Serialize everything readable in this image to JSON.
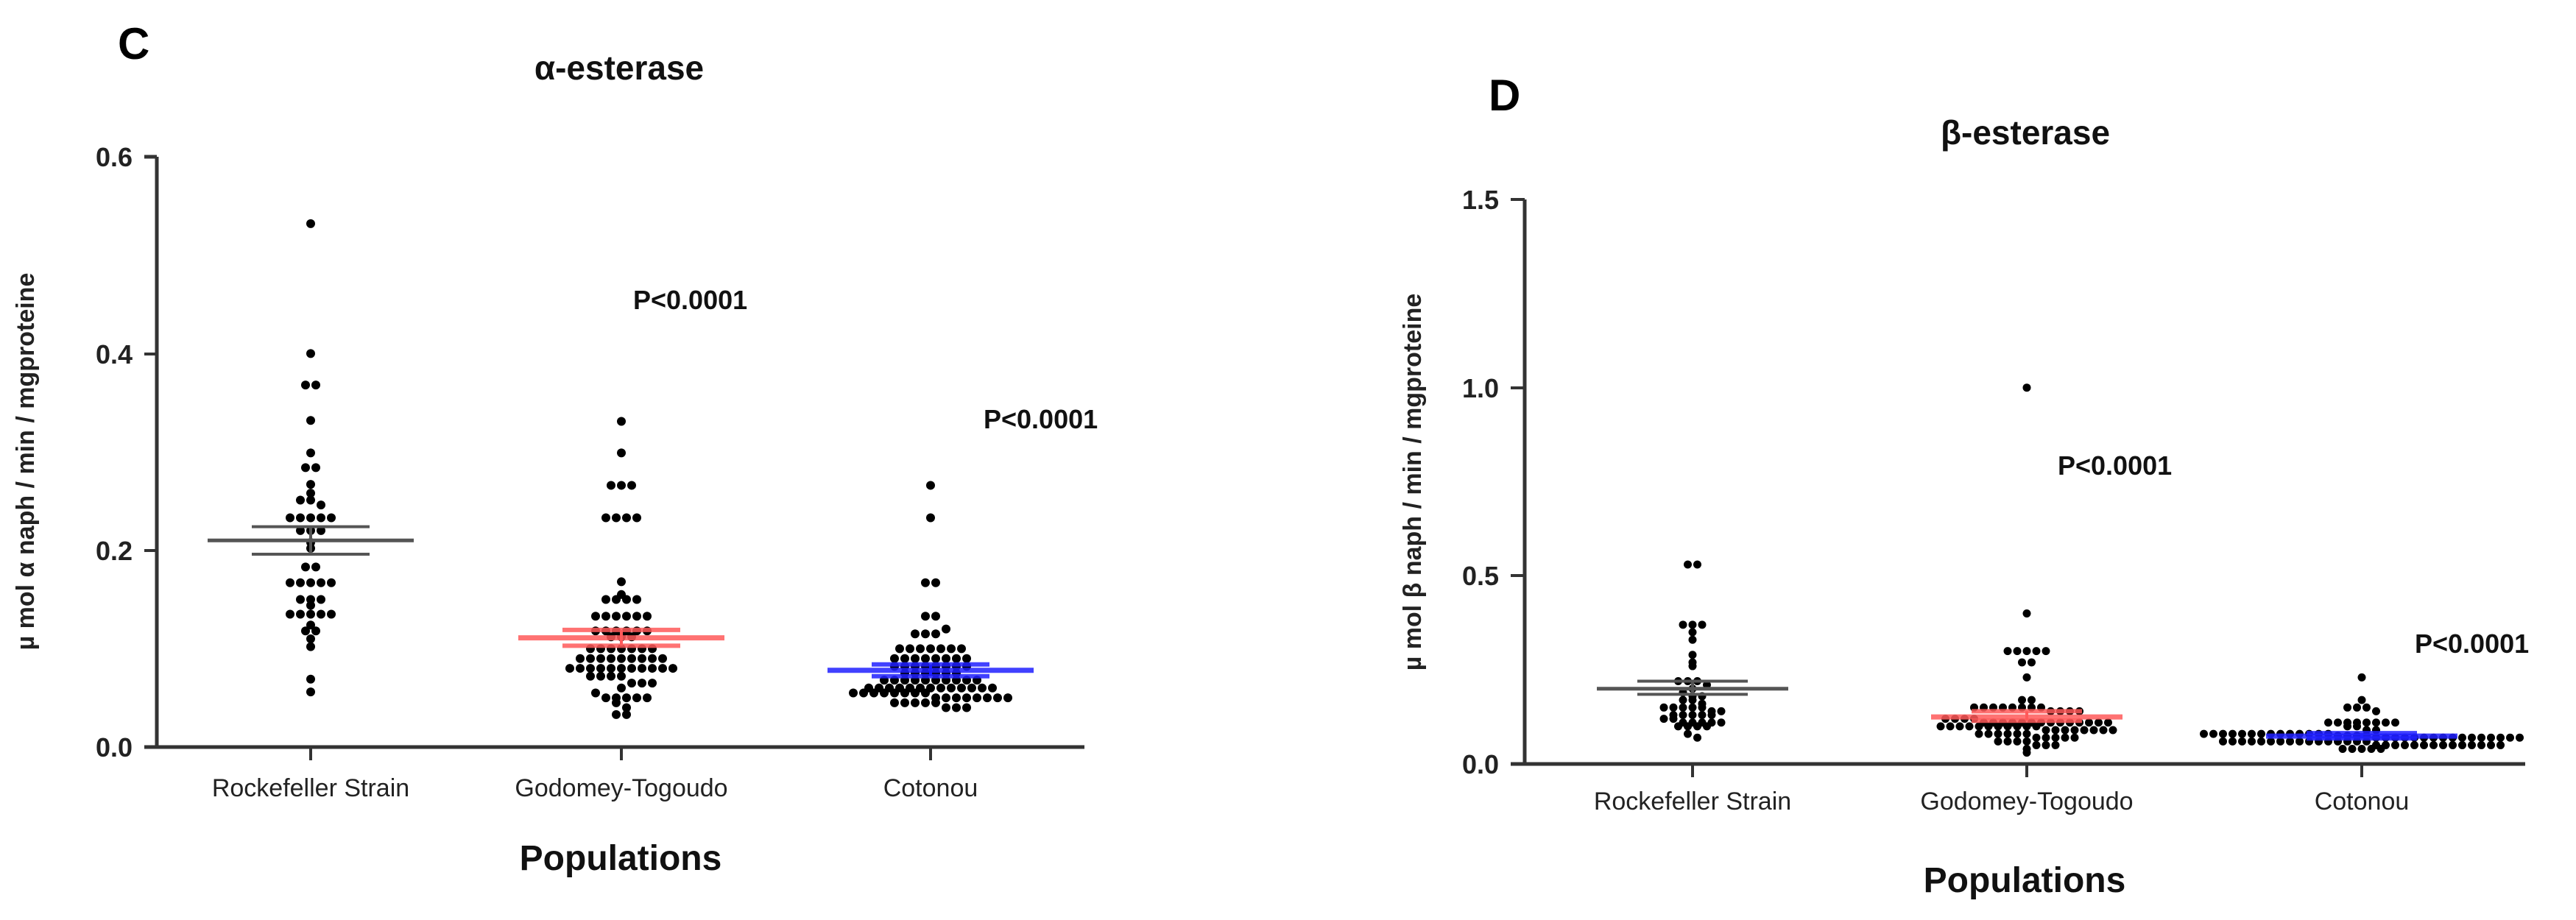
{
  "figure": {
    "panels": [
      {
        "letter": "C",
        "title": "α-esterase",
        "ylabel": "µ mol α naph / min / mgproteine",
        "xlabel": "Populations",
        "yticks": [
          "0.0",
          "0.2",
          "0.4",
          "0.6"
        ],
        "categories": [
          "Rockefeller Strain",
          "Godomey-Togoudo",
          "Cotonou"
        ],
        "pvalues": [
          "P<0.0001",
          "P<0.0001"
        ]
      },
      {
        "letter": "D",
        "title": "β-esterase",
        "ylabel": "µ mol β naph / min / mgproteine",
        "xlabel": "Populations",
        "yticks": [
          "0.0",
          "0.5",
          "1.0",
          "1.5"
        ],
        "categories": [
          "Rockefeller Strain",
          "Godomey-Togoudo",
          "Cotonou"
        ],
        "pvalues": [
          "P<0.0001",
          "P<0.0001"
        ]
      }
    ],
    "colors": {
      "rockefeller": "#555555",
      "godomey": "#ff5a5a",
      "cotonou": "#2020ff",
      "dots": "#000000",
      "axis": "#333333"
    }
  },
  "chart_data": [
    {
      "type": "scatter",
      "subtype": "dot-plot (beeswarm) with mean ± SEM",
      "title": "α-esterase",
      "panel": "C",
      "xlabel": "Populations",
      "ylabel": "µ mol α naph / min / mgproteine",
      "ylim": [
        0,
        0.6
      ],
      "yticks": [
        0.0,
        0.2,
        0.4,
        0.6
      ],
      "grid": false,
      "categories": [
        "Rockefeller Strain",
        "Godomey-Togoudo",
        "Cotonou"
      ],
      "series": [
        {
          "name": "Rockefeller Strain",
          "mean": 0.21,
          "sem_low": 0.196,
          "sem_high": 0.224,
          "color": "#555555",
          "values": [
            0.532,
            0.4,
            0.368,
            0.368,
            0.332,
            0.299,
            0.284,
            0.284,
            0.267,
            0.258,
            0.251,
            0.251,
            0.246,
            0.233,
            0.233,
            0.233,
            0.233,
            0.233,
            0.22,
            0.22,
            0.22,
            0.208,
            0.202,
            0.183,
            0.183,
            0.167,
            0.167,
            0.167,
            0.167,
            0.167,
            0.15,
            0.15,
            0.15,
            0.144,
            0.135,
            0.135,
            0.135,
            0.135,
            0.135,
            0.124,
            0.118,
            0.118,
            0.11,
            0.102,
            0.069,
            0.056
          ]
        },
        {
          "name": "Godomey-Togoudo",
          "mean": 0.111,
          "sem_low": 0.103,
          "sem_high": 0.119,
          "color": "#ff5a5a",
          "values": [
            0.331,
            0.299,
            0.266,
            0.266,
            0.266,
            0.233,
            0.233,
            0.233,
            0.233,
            0.168,
            0.15,
            0.15,
            0.15,
            0.15,
            0.155,
            0.133,
            0.133,
            0.133,
            0.133,
            0.133,
            0.133,
            0.118,
            0.118,
            0.118,
            0.118,
            0.118,
            0.118,
            0.112,
            0.112,
            0.112,
            0.1,
            0.1,
            0.1,
            0.1,
            0.1,
            0.1,
            0.1,
            0.09,
            0.09,
            0.09,
            0.09,
            0.09,
            0.09,
            0.09,
            0.09,
            0.09,
            0.08,
            0.08,
            0.08,
            0.08,
            0.08,
            0.08,
            0.08,
            0.08,
            0.08,
            0.08,
            0.08,
            0.072,
            0.072,
            0.072,
            0.072,
            0.065,
            0.065,
            0.065,
            0.06,
            0.055,
            0.05,
            0.05,
            0.05,
            0.05,
            0.05,
            0.045,
            0.04,
            0.033,
            0.033
          ]
        },
        {
          "name": "Cotonou",
          "mean": 0.078,
          "sem_low": 0.072,
          "sem_high": 0.084,
          "color": "#2020ff",
          "values": [
            0.266,
            0.233,
            0.167,
            0.167,
            0.133,
            0.133,
            0.115,
            0.115,
            0.115,
            0.12,
            0.1,
            0.1,
            0.1,
            0.1,
            0.1,
            0.1,
            0.1,
            0.09,
            0.09,
            0.09,
            0.09,
            0.09,
            0.09,
            0.09,
            0.09,
            0.082,
            0.082,
            0.082,
            0.082,
            0.082,
            0.082,
            0.082,
            0.082,
            0.075,
            0.075,
            0.075,
            0.075,
            0.075,
            0.075,
            0.068,
            0.068,
            0.068,
            0.068,
            0.068,
            0.068,
            0.068,
            0.068,
            0.068,
            0.068,
            0.06,
            0.06,
            0.06,
            0.06,
            0.06,
            0.06,
            0.06,
            0.06,
            0.06,
            0.06,
            0.06,
            0.06,
            0.06,
            0.055,
            0.055,
            0.055,
            0.055,
            0.055,
            0.055,
            0.055,
            0.055,
            0.05,
            0.05,
            0.05,
            0.05,
            0.05,
            0.05,
            0.05,
            0.05,
            0.045,
            0.045,
            0.045,
            0.045,
            0.045,
            0.04,
            0.04,
            0.04
          ]
        }
      ],
      "annotations": [
        {
          "text": "P<0.0001",
          "near": "Godomey-Togoudo",
          "y": 0.45
        },
        {
          "text": "P<0.0001",
          "near": "Cotonou",
          "y": 0.3
        }
      ]
    },
    {
      "type": "scatter",
      "subtype": "dot-plot (beeswarm) with mean ± SEM",
      "title": "β-esterase",
      "panel": "D",
      "xlabel": "Populations",
      "ylabel": "µ mol β naph / min / mgproteine",
      "ylim": [
        0,
        1.5
      ],
      "yticks": [
        0.0,
        0.5,
        1.0,
        1.5
      ],
      "grid": false,
      "categories": [
        "Rockefeller Strain",
        "Godomey-Togoudo",
        "Cotonou"
      ],
      "series": [
        {
          "name": "Rockefeller Strain",
          "mean": 0.2,
          "sem_low": 0.185,
          "sem_high": 0.22,
          "color": "#555555",
          "values": [
            0.53,
            0.53,
            0.37,
            0.37,
            0.37,
            0.35,
            0.33,
            0.29,
            0.27,
            0.26,
            0.22,
            0.22,
            0.22,
            0.21,
            0.2,
            0.19,
            0.18,
            0.18,
            0.17,
            0.17,
            0.16,
            0.15,
            0.15,
            0.15,
            0.15,
            0.15,
            0.14,
            0.14,
            0.13,
            0.13,
            0.13,
            0.13,
            0.13,
            0.12,
            0.12,
            0.11,
            0.11,
            0.11,
            0.11,
            0.11,
            0.1,
            0.1,
            0.1,
            0.1,
            0.08,
            0.07
          ]
        },
        {
          "name": "Godomey-Togoudo",
          "mean": 0.125,
          "sem_low": 0.115,
          "sem_high": 0.14,
          "color": "#ff5a5a",
          "values": [
            1.0,
            0.4,
            0.3,
            0.3,
            0.3,
            0.3,
            0.3,
            0.27,
            0.27,
            0.23,
            0.17,
            0.17,
            0.15,
            0.15,
            0.15,
            0.15,
            0.15,
            0.15,
            0.15,
            0.15,
            0.14,
            0.14,
            0.14,
            0.14,
            0.12,
            0.12,
            0.12,
            0.12,
            0.11,
            0.11,
            0.11,
            0.11,
            0.11,
            0.11,
            0.11,
            0.11,
            0.11,
            0.11,
            0.11,
            0.11,
            0.11,
            0.11,
            0.1,
            0.1,
            0.1,
            0.1,
            0.1,
            0.1,
            0.1,
            0.1,
            0.1,
            0.1,
            0.1,
            0.09,
            0.09,
            0.09,
            0.09,
            0.09,
            0.09,
            0.09,
            0.09,
            0.08,
            0.08,
            0.08,
            0.08,
            0.08,
            0.08,
            0.07,
            0.07,
            0.07,
            0.07,
            0.07,
            0.06,
            0.06,
            0.06,
            0.06,
            0.05,
            0.05,
            0.05,
            0.04,
            0.03
          ]
        },
        {
          "name": "Cotonou",
          "mean": 0.074,
          "sem_low": 0.068,
          "sem_high": 0.082,
          "color": "#2020ff",
          "values": [
            0.23,
            0.17,
            0.15,
            0.15,
            0.15,
            0.14,
            0.11,
            0.11,
            0.11,
            0.11,
            0.11,
            0.11,
            0.11,
            0.11,
            0.1,
            0.1,
            0.09,
            0.09,
            0.08,
            0.08,
            0.08,
            0.08,
            0.08,
            0.08,
            0.08,
            0.08,
            0.08,
            0.08,
            0.08,
            0.08,
            0.08,
            0.08,
            0.075,
            0.075,
            0.075,
            0.075,
            0.07,
            0.07,
            0.07,
            0.07,
            0.07,
            0.07,
            0.07,
            0.07,
            0.07,
            0.07,
            0.07,
            0.07,
            0.07,
            0.07,
            0.07,
            0.07,
            0.06,
            0.06,
            0.06,
            0.06,
            0.06,
            0.06,
            0.06,
            0.06,
            0.06,
            0.06,
            0.06,
            0.06,
            0.06,
            0.06,
            0.06,
            0.06,
            0.05,
            0.05,
            0.05,
            0.05,
            0.05,
            0.05,
            0.05,
            0.05,
            0.05,
            0.05,
            0.05,
            0.05,
            0.05,
            0.05,
            0.04,
            0.04,
            0.04,
            0.04,
            0.04
          ]
        }
      ],
      "annotations": [
        {
          "text": "P<0.0001",
          "near": "Godomey-Togoudo",
          "y": 0.79
        },
        {
          "text": "P<0.0001",
          "near": "Cotonou",
          "y": 0.32
        }
      ]
    }
  ]
}
